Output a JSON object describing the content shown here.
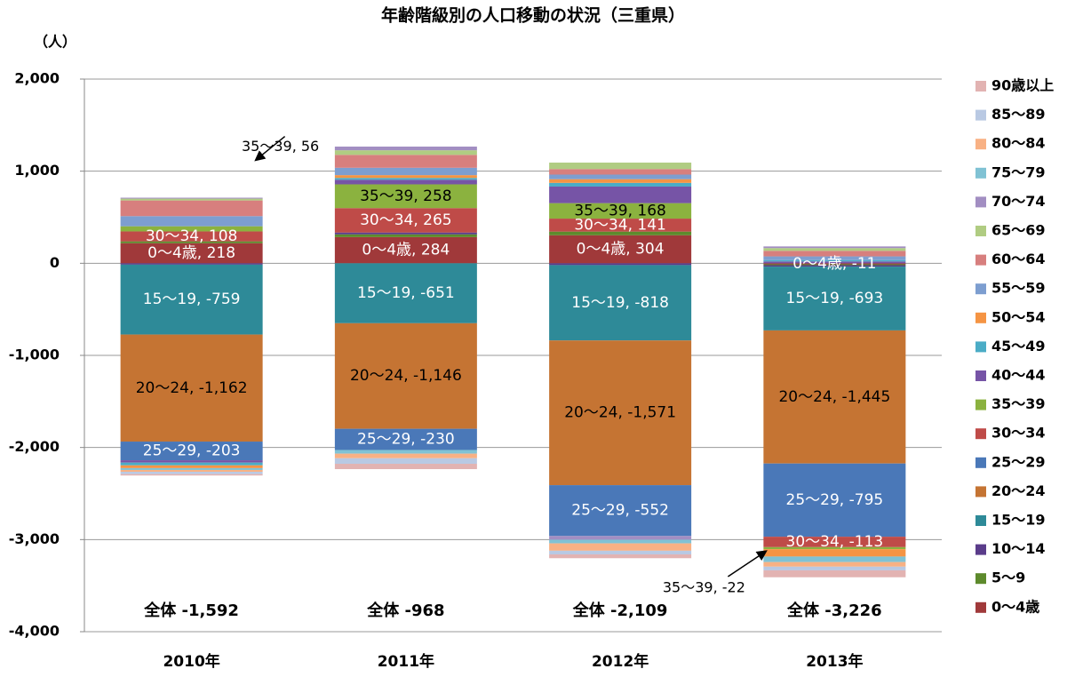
{
  "chart_data": {
    "type": "stacked-bar",
    "title": "年齢階級別の人口移動の状況（三重県）",
    "y_unit": "（人）",
    "categories": [
      "2010年",
      "2011年",
      "2012年",
      "2013年"
    ],
    "ylim": [
      -4000,
      2000
    ],
    "yticks": [
      {
        "value": -4000,
        "label": "-4,000"
      },
      {
        "value": -3000,
        "label": "-3,000"
      },
      {
        "value": -2000,
        "label": "-2,000"
      },
      {
        "value": -1000,
        "label": "-1,000"
      },
      0,
      {
        "value": 1000,
        "label": "1,000"
      },
      {
        "value": 2000,
        "label": "2,000"
      }
    ],
    "grid": true,
    "legend": "right",
    "totals": [
      "全体 -1,592",
      "全体 -968",
      "全体 -2,109",
      "全体 -3,226"
    ],
    "series": [
      {
        "name": "0～4歳",
        "color": "#a0393a",
        "label_color": "#ffffff",
        "values": [
          218,
          284,
          304,
          -11
        ],
        "value_labels": [
          "0～4歳, 218",
          "0～4歳, 284",
          "0～4歳, 304",
          "0～4歳, -11"
        ]
      },
      {
        "name": "5～9",
        "color": "#5d8a2c",
        "values": [
          20,
          30,
          40,
          -10
        ]
      },
      {
        "name": "10～14",
        "color": "#5a3c8a",
        "values": [
          -15,
          20,
          -20,
          -15
        ]
      },
      {
        "name": "15～19",
        "color": "#2e8a98",
        "label_color": "#ffffff",
        "values": [
          -759,
          -651,
          -818,
          -693
        ],
        "value_labels": [
          "15～19, -759",
          "15～19, -651",
          "15～19, -818",
          "15～19, -693"
        ]
      },
      {
        "name": "20～24",
        "color": "#c57433",
        "label_color": "#000000",
        "values": [
          -1162,
          -1146,
          -1571,
          -1445
        ],
        "value_labels": [
          "20～24, -1,162",
          "20～24, -1,146",
          "20～24, -1,571",
          "20～24, -1,445"
        ]
      },
      {
        "name": "25～29",
        "color": "#4a78b8",
        "label_color": "#ffffff",
        "values": [
          -203,
          -230,
          -552,
          -795
        ],
        "value_labels": [
          "25～29, -203",
          "25～29, -230",
          "25～29, -552",
          "25～29, -795"
        ]
      },
      {
        "name": "30～34",
        "color": "#bf4b48",
        "label_color": "#ffffff",
        "values": [
          108,
          265,
          141,
          -113
        ],
        "value_labels": [
          "30～34, 108",
          "30～34, 265",
          "30～34, 141",
          "30～34, -113"
        ]
      },
      {
        "name": "35～39",
        "color": "#8bb23f",
        "label_color": "#000000",
        "values": [
          56,
          258,
          168,
          -22
        ],
        "value_labels": [
          "35～39, 56",
          "35～39, 258",
          "35～39, 168",
          "35～39, -22"
        ]
      },
      {
        "name": "40～44",
        "color": "#7654a6",
        "values": [
          -25,
          50,
          180,
          20
        ]
      },
      {
        "name": "45～49",
        "color": "#4bacc6",
        "values": [
          -30,
          20,
          40,
          15
        ]
      },
      {
        "name": "50～54",
        "color": "#f59443",
        "values": [
          -30,
          30,
          40,
          -80
        ]
      },
      {
        "name": "55～59",
        "color": "#7d9ed0",
        "values": [
          110,
          80,
          50,
          40
        ]
      },
      {
        "name": "60～64",
        "color": "#d77f7e",
        "values": [
          170,
          140,
          60,
          60
        ]
      },
      {
        "name": "65～69",
        "color": "#b0cc82",
        "values": [
          20,
          50,
          70,
          30
        ]
      },
      {
        "name": "70～74",
        "color": "#a28ec2",
        "values": [
          10,
          40,
          -40,
          18
        ]
      },
      {
        "name": "75～79",
        "color": "#80c2d4",
        "values": [
          -20,
          -40,
          -40,
          -60
        ]
      },
      {
        "name": "80～84",
        "color": "#f8b184",
        "values": [
          -20,
          -50,
          -80,
          -50
        ]
      },
      {
        "name": "85～89",
        "color": "#b9c9e3",
        "values": [
          -25,
          -60,
          -40,
          -40
        ]
      },
      {
        "name": "90歳以上",
        "color": "#e2b3b2",
        "values": [
          -15,
          -58,
          -41,
          -75
        ]
      }
    ]
  }
}
